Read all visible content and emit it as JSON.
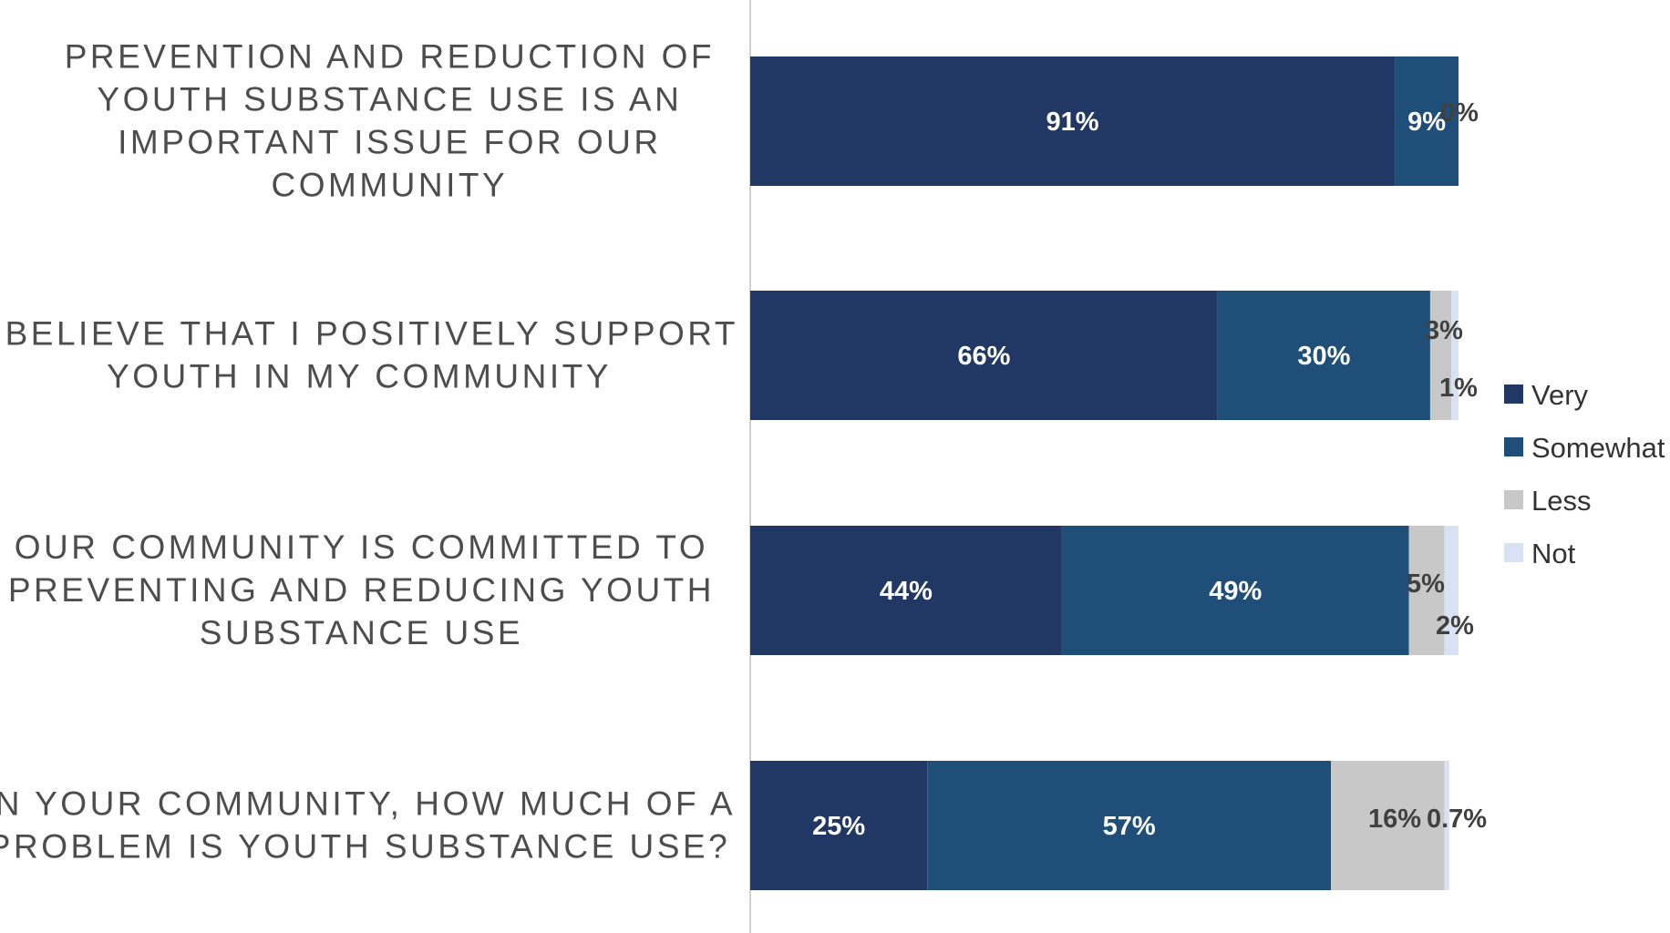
{
  "chart_data": {
    "type": "bar",
    "orientation": "horizontal",
    "stacked": true,
    "categories": [
      [
        "PREVENTION AND REDUCTION OF",
        "YOUTH SUBSTANCE USE IS AN",
        "IMPORTANT ISSUE FOR OUR",
        "COMMUNITY"
      ],
      [
        "I BELIEVE THAT I POSITIVELY SUPPORT",
        "YOUTH IN MY COMMUNITY"
      ],
      [
        "OUR COMMUNITY IS COMMITTED TO",
        "PREVENTING AND REDUCING YOUTH",
        "SUBSTANCE USE"
      ],
      [
        "IN YOUR COMMUNITY, HOW MUCH OF A",
        "PROBLEM IS YOUTH SUBSTANCE USE?"
      ]
    ],
    "series": [
      {
        "name": "Very",
        "color": "#213764",
        "values": [
          91,
          66,
          44,
          25
        ],
        "labels": [
          "91%",
          "66%",
          "44%",
          "25%"
        ]
      },
      {
        "name": "Somewhat",
        "color": "#1f4e79",
        "values": [
          9,
          30,
          49,
          57
        ],
        "labels": [
          "9%",
          "30%",
          "49%",
          "57%"
        ]
      },
      {
        "name": "Less",
        "color": "#c8c8c8",
        "values": [
          0,
          3,
          5,
          16
        ],
        "labels": [
          "0%",
          "3%",
          "5%",
          "16%"
        ]
      },
      {
        "name": "Not",
        "color": "#d9e2f3",
        "values": [
          0,
          1,
          2,
          0.7
        ],
        "labels": [
          "",
          "1%",
          "2%",
          "0.7%"
        ]
      }
    ],
    "xlim": [
      0,
      100
    ],
    "grid": false,
    "legend_position": "right"
  }
}
